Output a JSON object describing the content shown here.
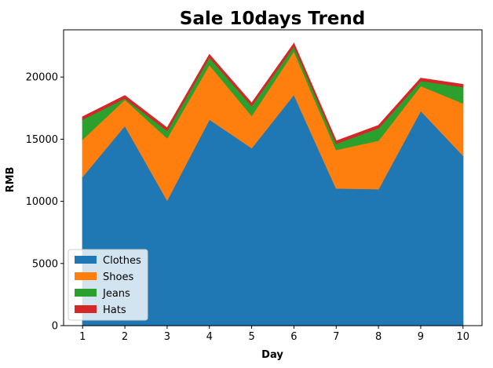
{
  "chart_data": {
    "type": "area",
    "stacked": true,
    "title": "Sale 10days Trend",
    "xlabel": "Day",
    "ylabel": "RMB",
    "x": [
      1,
      2,
      3,
      4,
      5,
      6,
      7,
      8,
      9,
      10
    ],
    "xticks": [
      "1",
      "2",
      "3",
      "4",
      "5",
      "6",
      "7",
      "8",
      "9",
      "10"
    ],
    "ylim": [
      0,
      23800
    ],
    "yticks": [
      0,
      5000,
      10000,
      15000,
      20000
    ],
    "ytick_labels": [
      "0",
      "5000",
      "10000",
      "15000",
      "20000"
    ],
    "grid": false,
    "legend": {
      "position": "lower-left"
    },
    "series": [
      {
        "name": "Clothes",
        "color": "#1f77b4",
        "values": [
          12000,
          16100,
          10100,
          16600,
          14300,
          18600,
          11050,
          11000,
          17300,
          13700
        ]
      },
      {
        "name": "Shoes",
        "color": "#ff7f0e",
        "values": [
          3000,
          2100,
          5000,
          4400,
          2600,
          3500,
          3100,
          3900,
          2000,
          4200
        ]
      },
      {
        "name": "Jeans",
        "color": "#2ca02c",
        "values": [
          1600,
          100,
          600,
          600,
          800,
          400,
          500,
          1000,
          400,
          1300
        ]
      },
      {
        "name": "Hats",
        "color": "#d62728",
        "values": [
          200,
          200,
          200,
          200,
          200,
          200,
          200,
          200,
          200,
          200
        ]
      }
    ]
  }
}
